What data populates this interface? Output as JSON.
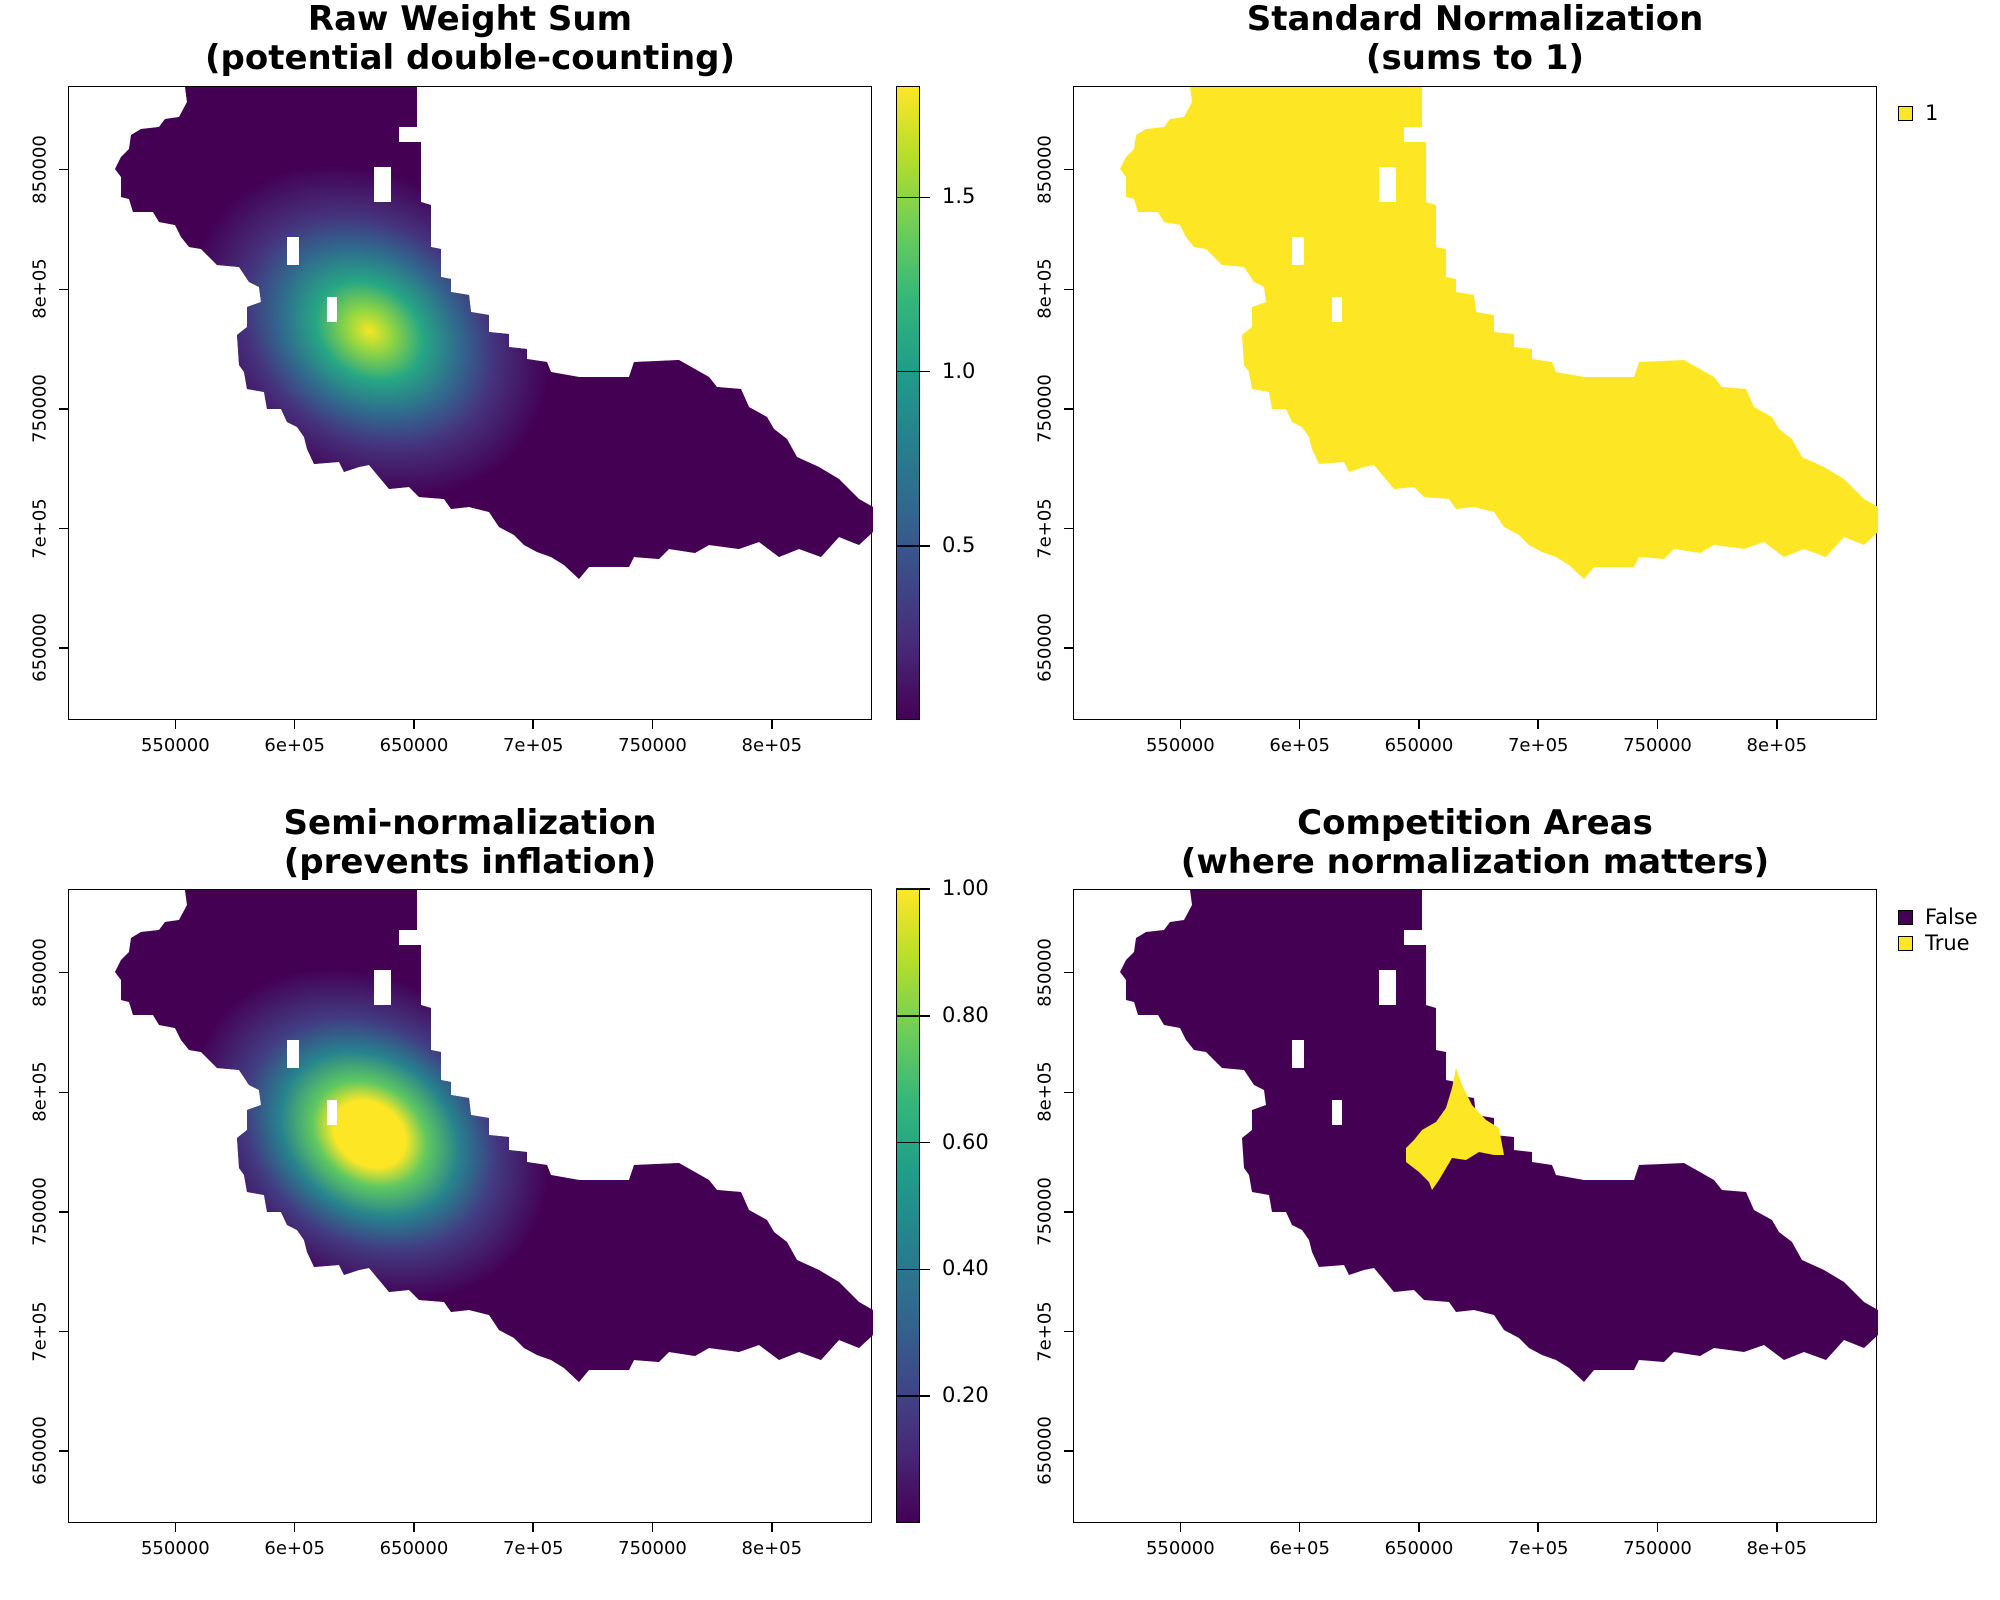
{
  "colors": {
    "viridis_dark": "#440154",
    "viridis_yellow": "#fde725"
  },
  "x_ticks": [
    "550000",
    "6e+05",
    "650000",
    "7e+05",
    "750000",
    "8e+05"
  ],
  "y_ticks": [
    "650000",
    "7e+05",
    "750000",
    "8e+05",
    "850000"
  ],
  "chart_data": [
    {
      "type": "heatmap",
      "title": "Raw Weight Sum",
      "subtitle": "(potential double-counting)",
      "x_ticks": [
        550000,
        600000,
        650000,
        700000,
        750000,
        800000
      ],
      "y_ticks": [
        650000,
        700000,
        750000,
        800000,
        850000
      ],
      "legend": "continuous",
      "colorbar_range": [
        0,
        1.82
      ],
      "colorbar_ticks": [
        "0.5",
        "1.0",
        "1.5"
      ],
      "colorbar_tick_values": [
        0.5,
        1.0,
        1.5
      ],
      "peak_value": 1.8
    },
    {
      "type": "heatmap",
      "title": "Standard Normalization",
      "subtitle": "(sums to 1)",
      "x_ticks": [
        550000,
        600000,
        650000,
        700000,
        750000,
        800000
      ],
      "y_ticks": [
        650000,
        700000,
        750000,
        800000,
        850000
      ],
      "legend": "categorical",
      "categories": [
        {
          "label": "1",
          "color": "#fde725"
        }
      ]
    },
    {
      "type": "heatmap",
      "title": "Semi-normalization",
      "subtitle": "(prevents inflation)",
      "x_ticks": [
        550000,
        600000,
        650000,
        700000,
        750000,
        800000
      ],
      "y_ticks": [
        650000,
        700000,
        750000,
        800000,
        850000
      ],
      "legend": "continuous",
      "colorbar_range": [
        0,
        1.0
      ],
      "colorbar_ticks": [
        "0.20",
        "0.40",
        "0.60",
        "0.80",
        "1.00"
      ],
      "colorbar_tick_values": [
        0.2,
        0.4,
        0.6,
        0.8,
        1.0
      ],
      "peak_value": 1.0
    },
    {
      "type": "heatmap",
      "title": "Competition Areas",
      "subtitle": "(where normalization matters)",
      "x_ticks": [
        550000,
        600000,
        650000,
        700000,
        750000,
        800000
      ],
      "y_ticks": [
        650000,
        700000,
        750000,
        800000,
        850000
      ],
      "legend": "categorical",
      "categories": [
        {
          "label": "False",
          "color": "#440154"
        },
        {
          "label": "True",
          "color": "#fde725"
        }
      ]
    }
  ]
}
